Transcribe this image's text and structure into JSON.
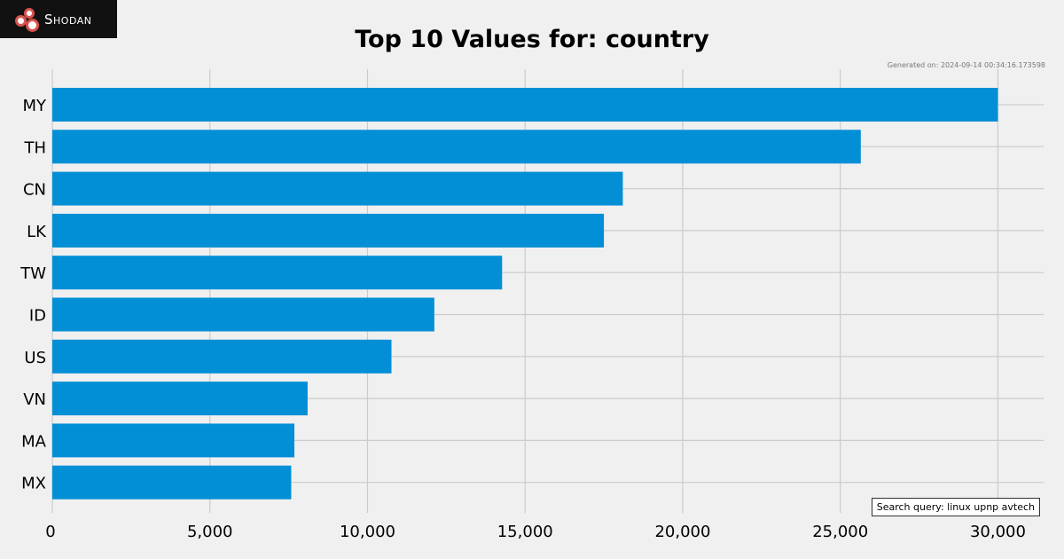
{
  "branding": {
    "logo_text": "Shodan",
    "logo_icon": "shodan-logo-icon"
  },
  "generated": "Generated on: 2024-09-14 00:34:16.173598",
  "search_query": "Search query: linux upnp avtech",
  "colors": {
    "background": "#f0f0f0",
    "bar": "#038fd6",
    "grid": "#cbcbcb",
    "logo_background": "#111111",
    "logo_accent": "#d9534f"
  },
  "chart_data": {
    "type": "bar",
    "orientation": "horizontal",
    "title": "Top 10 Values for: country",
    "xlabel": "",
    "ylabel": "",
    "categories": [
      "MY",
      "TH",
      "CN",
      "LK",
      "TW",
      "ID",
      "US",
      "VN",
      "MA",
      "MX"
    ],
    "values": [
      30000,
      25650,
      18100,
      17500,
      14270,
      12120,
      10760,
      8100,
      7680,
      7580
    ],
    "xlim": [
      0,
      31450
    ],
    "xticks": [
      0,
      5000,
      10000,
      15000,
      20000,
      25000,
      30000
    ],
    "xtick_labels": [
      "0",
      "5,000",
      "10,000",
      "15,000",
      "20,000",
      "25,000",
      "30,000"
    ],
    "grid": true
  }
}
